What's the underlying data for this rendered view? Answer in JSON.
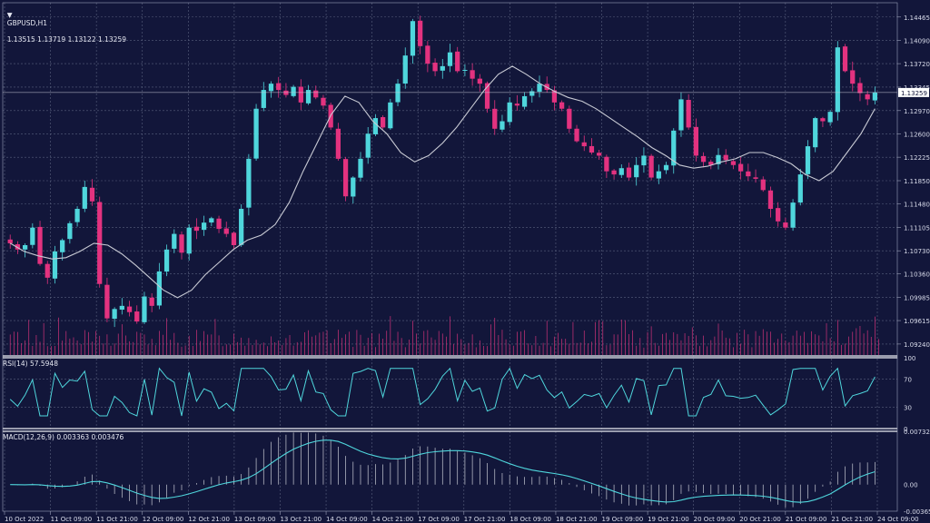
{
  "symbol_title": "GBPUSD,H1",
  "ohlc_text": "1.13515 1.13719 1.13122 1.13259",
  "rsi_title": "RSI(14) 57.5948",
  "macd_title": "MACD(12,26,9) 0.003363 0.003476",
  "current_price_label": "1.13259",
  "colors": {
    "background": "#12163a",
    "grid": "#59607e",
    "bull": "#4fd6dc",
    "bear": "#e3327f",
    "ma": "#c8cad4",
    "volume": "#d1337a",
    "rsi_line": "#4fd6dc",
    "macd_line": "#4fd6dc",
    "macd_hist": "#c8cad4",
    "label_bg": "#ffffff",
    "label_text": "#12163a"
  },
  "chart_data": [
    {
      "type": "line",
      "title": "GBPUSD,H1",
      "series_kind": "candlestick",
      "y_ticks": [
        "1.14465",
        "1.14090",
        "1.13720",
        "1.13345",
        "1.12970",
        "1.12600",
        "1.12225",
        "1.11850",
        "1.11480",
        "1.11105",
        "1.10730",
        "1.10360",
        "1.09985",
        "1.09615",
        "1.09240"
      ],
      "ylim": [
        1.0905,
        1.1465
      ],
      "x_ticks": [
        "10 Oct 2022",
        "11 Oct 09:00",
        "11 Oct 21:00",
        "12 Oct 09:00",
        "12 Oct 21:00",
        "13 Oct 09:00",
        "13 Oct 21:00",
        "14 Oct 09:00",
        "14 Oct 21:00",
        "17 Oct 09:00",
        "17 Oct 21:00",
        "18 Oct 09:00",
        "18 Oct 21:00",
        "19 Oct 09:00",
        "19 Oct 21:00",
        "20 Oct 09:00",
        "20 Oct 21:00",
        "21 Oct 09:00",
        "21 Oct 21:00",
        "24 Oct 09:00"
      ],
      "close_path": [
        1.1085,
        1.1075,
        1.1082,
        1.111,
        1.1052,
        1.103,
        1.1072,
        1.109,
        1.1117,
        1.114,
        1.1175,
        1.1152,
        1.102,
        1.0965,
        1.098,
        1.0985,
        1.0975,
        1.096,
        1.1,
        1.0985,
        1.104,
        1.1075,
        1.11,
        1.107,
        1.111,
        1.1105,
        1.1118,
        1.1125,
        1.1108,
        1.11,
        1.1082,
        1.114,
        1.122,
        1.13,
        1.133,
        1.134,
        1.133,
        1.1322,
        1.1335,
        1.131,
        1.133,
        1.1318,
        1.1305,
        1.127,
        1.122,
        1.116,
        1.119,
        1.122,
        1.126,
        1.1285,
        1.127,
        1.131,
        1.134,
        1.1385,
        1.144,
        1.14,
        1.1372,
        1.136,
        1.1368,
        1.139,
        1.136,
        1.1362,
        1.1348,
        1.134,
        1.13,
        1.1268,
        1.128,
        1.131,
        1.1305,
        1.132,
        1.1328,
        1.134,
        1.133,
        1.131,
        1.13,
        1.1268,
        1.1248,
        1.124,
        1.123,
        1.1225,
        1.12,
        1.1195,
        1.1205,
        1.119,
        1.121,
        1.1225,
        1.119,
        1.12,
        1.121,
        1.1265,
        1.1315,
        1.127,
        1.1225,
        1.1215,
        1.121,
        1.1226,
        1.1218,
        1.121,
        1.12,
        1.1192,
        1.1188,
        1.117,
        1.114,
        1.112,
        1.111,
        1.115,
        1.1195,
        1.124,
        1.1285,
        1.128,
        1.1295,
        1.1398,
        1.136,
        1.134,
        1.1325,
        1.1315,
        1.1326
      ],
      "ma_path": [
        1.1085,
        1.1072,
        1.1065,
        1.106,
        1.1062,
        1.1072,
        1.1085,
        1.1082,
        1.1068,
        1.105,
        1.103,
        1.101,
        1.0998,
        1.101,
        1.1035,
        1.1055,
        1.1075,
        1.109,
        1.1098,
        1.1115,
        1.115,
        1.12,
        1.1245,
        1.129,
        1.132,
        1.131,
        1.128,
        1.126,
        1.123,
        1.1215,
        1.1225,
        1.1245,
        1.127,
        1.13,
        1.133,
        1.1355,
        1.1368,
        1.1355,
        1.134,
        1.1328,
        1.1318,
        1.1312,
        1.13,
        1.1285,
        1.127,
        1.1255,
        1.1238,
        1.1225,
        1.121,
        1.1205,
        1.1208,
        1.1215,
        1.122,
        1.123,
        1.123,
        1.1222,
        1.1212,
        1.1195,
        1.1185,
        1.12,
        1.123,
        1.126,
        1.13
      ],
      "rsi_ylim": [
        0,
        100
      ],
      "rsi_levels": [
        100,
        70,
        30,
        0
      ],
      "rsi_value": 57.5948,
      "macd_ticks": [
        "0.007324",
        "0.00",
        "-0.003655"
      ],
      "macd_ylim": [
        -0.003655,
        0.007324
      ],
      "macd_values": [
        0.003363,
        0.003476
      ]
    }
  ]
}
